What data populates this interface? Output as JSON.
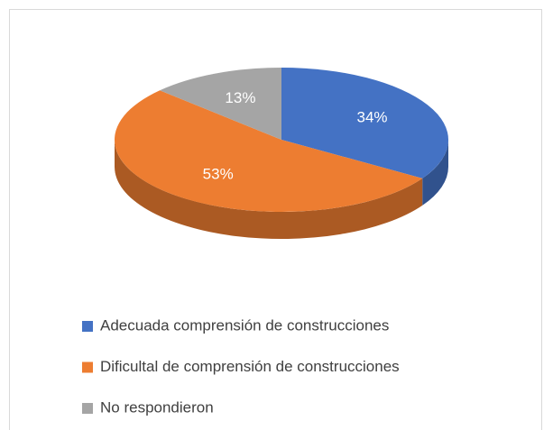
{
  "chart_data": {
    "type": "pie",
    "categories": [
      "Adecuada comprensión de construcciones",
      "Dificultal de comprensión de construcciones",
      "No respondieron"
    ],
    "values": [
      34,
      53,
      13
    ],
    "value_labels": [
      "34%",
      "53%",
      "13%"
    ],
    "colors": [
      "#4472c4",
      "#ed7d31",
      "#a5a5a5"
    ],
    "legend": "bottom"
  }
}
